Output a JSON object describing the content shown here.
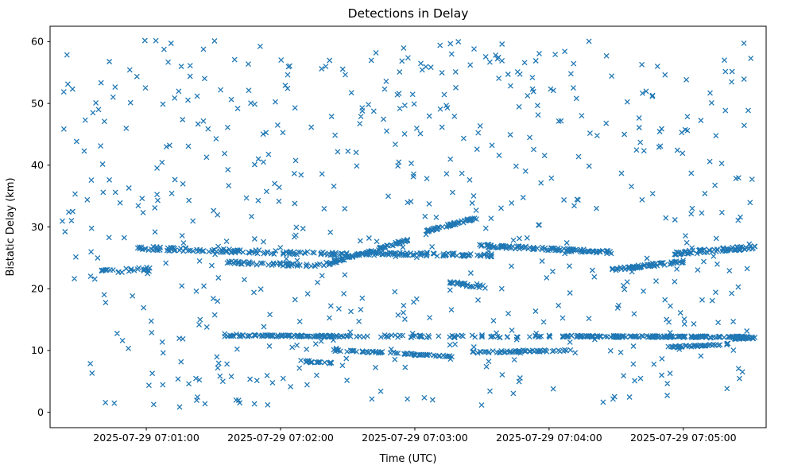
{
  "chart_data": {
    "type": "scatter",
    "title": "Detections in Delay",
    "xlabel": "Time (UTC)",
    "ylabel": "Bistatic Delay (km)",
    "marker": "x",
    "marker_color": "#1f77b4",
    "grid": false,
    "legend": false,
    "time_base": "2025-07-29 07:00:00",
    "x_tick_labels": [
      "2025-07-29 07:01:00",
      "2025-07-29 07:02:00",
      "2025-07-29 07:03:00",
      "2025-07-29 07:04:00",
      "2025-07-29 07:05:00"
    ],
    "x_tick_seconds": [
      60,
      120,
      180,
      240,
      300
    ],
    "x_domain_seconds": [
      17,
      337
    ],
    "y_ticks": [
      0,
      10,
      20,
      30,
      40,
      50,
      60
    ],
    "ylim": [
      -2.5,
      62.5
    ],
    "seed": 42,
    "background_clusters": [
      {
        "t0": 22,
        "t1": 332,
        "y0": 33.0,
        "y1": 60.3,
        "n": 300
      },
      {
        "t0": 22,
        "t1": 332,
        "y0": 20.0,
        "y1": 33.0,
        "n": 115
      },
      {
        "t0": 22,
        "t1": 332,
        "y0": 0.8,
        "y1": 20.0,
        "n": 195
      }
    ],
    "track_segments": [
      {
        "t0": 55,
        "t1": 150,
        "y0": 26.6,
        "y1": 25.5,
        "n": 130,
        "jitter": 0.3
      },
      {
        "t0": 40,
        "t1": 62,
        "y0": 22.7,
        "y1": 23.2,
        "n": 26,
        "jitter": 0.35
      },
      {
        "t0": 95,
        "t1": 140,
        "y0": 24.3,
        "y1": 23.7,
        "n": 55,
        "jitter": 0.25
      },
      {
        "t0": 140,
        "t1": 177,
        "y0": 23.9,
        "y1": 27.9,
        "n": 80,
        "jitter": 0.22
      },
      {
        "t0": 158,
        "t1": 215,
        "y0": 25.7,
        "y1": 25.4,
        "n": 85,
        "jitter": 0.25
      },
      {
        "t0": 185,
        "t1": 208,
        "y0": 29.3,
        "y1": 31.5,
        "n": 55,
        "jitter": 0.2
      },
      {
        "t0": 208,
        "t1": 268,
        "y0": 27.0,
        "y1": 25.9,
        "n": 115,
        "jitter": 0.25
      },
      {
        "t0": 195,
        "t1": 212,
        "y0": 21.0,
        "y1": 20.3,
        "n": 26,
        "jitter": 0.3
      },
      {
        "t0": 268,
        "t1": 300,
        "y0": 23.1,
        "y1": 24.4,
        "n": 65,
        "jitter": 0.25
      },
      {
        "t0": 295,
        "t1": 332,
        "y0": 25.7,
        "y1": 26.7,
        "n": 75,
        "jitter": 0.3
      },
      {
        "t0": 95,
        "t1": 150,
        "y0": 12.4,
        "y1": 12.3,
        "n": 105,
        "jitter": 0.15
      },
      {
        "t0": 128,
        "t1": 143,
        "y0": 8.3,
        "y1": 8.0,
        "n": 18,
        "jitter": 0.2
      },
      {
        "t0": 143,
        "t1": 177,
        "y0": 10.0,
        "y1": 9.5,
        "n": 42,
        "jitter": 0.15
      },
      {
        "t0": 177,
        "t1": 200,
        "y0": 9.4,
        "y1": 9.0,
        "n": 30,
        "jitter": 0.15
      },
      {
        "t0": 205,
        "t1": 250,
        "y0": 9.7,
        "y1": 10.0,
        "n": 55,
        "jitter": 0.15
      },
      {
        "t0": 150,
        "t1": 245,
        "y0": 12.3,
        "y1": 12.25,
        "n": 60,
        "jitter": 0.2
      },
      {
        "t0": 245,
        "t1": 332,
        "y0": 12.3,
        "y1": 12.15,
        "n": 190,
        "jitter": 0.15
      },
      {
        "t0": 293,
        "t1": 320,
        "y0": 10.5,
        "y1": 11.0,
        "n": 42,
        "jitter": 0.15
      },
      {
        "t0": 322,
        "t1": 333,
        "y0": 11.9,
        "y1": 12.1,
        "n": 22,
        "jitter": 0.15
      }
    ]
  }
}
